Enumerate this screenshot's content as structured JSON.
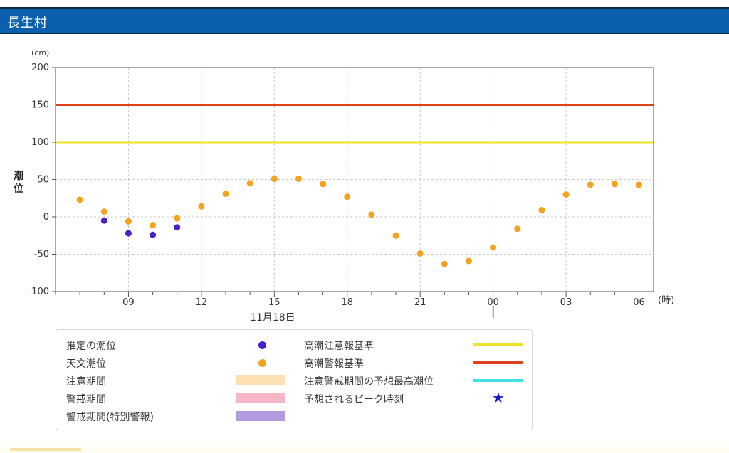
{
  "header": {
    "title": "長生村"
  },
  "chart_data": {
    "type": "scatter",
    "y_unit_label": "(cm)",
    "ylabel": "潮位",
    "x_unit_label": "(時)",
    "ylim": [
      -100,
      200
    ],
    "yticks": [
      200,
      150,
      100,
      50,
      0,
      -50,
      -100
    ],
    "x_ticks": [
      {
        "h": 9,
        "label": "09"
      },
      {
        "h": 12,
        "label": "12"
      },
      {
        "h": 15,
        "label": "15"
      },
      {
        "h": 18,
        "label": "18"
      },
      {
        "h": 21,
        "label": "21"
      },
      {
        "h": 24,
        "label": "00"
      },
      {
        "h": 27,
        "label": "03"
      },
      {
        "h": 30,
        "label": "06"
      }
    ],
    "x_range_hours": [
      6,
      30.6
    ],
    "date_label": "11月18日",
    "date_label_hour": 12,
    "day_boundary_hour": 24,
    "grid": true,
    "reference_lines": [
      {
        "name": "高潮注意報基準",
        "value": 100,
        "color": "#f0e22a"
      },
      {
        "name": "高潮警報基準",
        "value": 150,
        "color": "#e0401a"
      }
    ],
    "series": [
      {
        "name": "天文潮位",
        "color": "#f5a31f",
        "x": [
          7,
          8,
          9,
          10,
          11,
          12,
          13,
          14,
          15,
          16,
          17,
          18,
          19,
          20,
          21,
          22,
          23,
          24,
          25,
          26,
          27,
          28,
          29,
          30
        ],
        "values": [
          23,
          7,
          -6,
          -11,
          -2,
          14,
          31,
          45,
          51,
          51,
          44,
          27,
          3,
          -25,
          -49,
          -63,
          -59,
          -41,
          -16,
          9,
          30,
          43,
          44,
          43
        ]
      },
      {
        "name": "推定の潮位",
        "color": "#4a1fc7",
        "x": [
          8,
          9,
          10,
          11
        ],
        "values": [
          -5,
          -22,
          -24,
          -14
        ]
      }
    ],
    "legend": [
      {
        "label": "推定の潮位",
        "kind": "dot",
        "color": "#4a1fc7"
      },
      {
        "label": "天文潮位",
        "kind": "dot",
        "color": "#f5a31f"
      },
      {
        "label": "注意期間",
        "kind": "band",
        "color": "#fde0b4"
      },
      {
        "label": "警戒期間",
        "kind": "band",
        "color": "#f8b5c8"
      },
      {
        "label": "警戒期間(特別警報)",
        "kind": "band",
        "color": "#b49ae0"
      },
      {
        "label": "高潮注意報基準",
        "kind": "line",
        "color": "#f0e22a"
      },
      {
        "label": "高潮警報基準",
        "kind": "line",
        "color": "#e0401a"
      },
      {
        "label": "注意警戒期間の予想最高潮位",
        "kind": "line",
        "color": "#3fe0e6"
      },
      {
        "label": "予想されるピーク時刻",
        "kind": "star",
        "color": "#1a1ad6"
      }
    ]
  }
}
